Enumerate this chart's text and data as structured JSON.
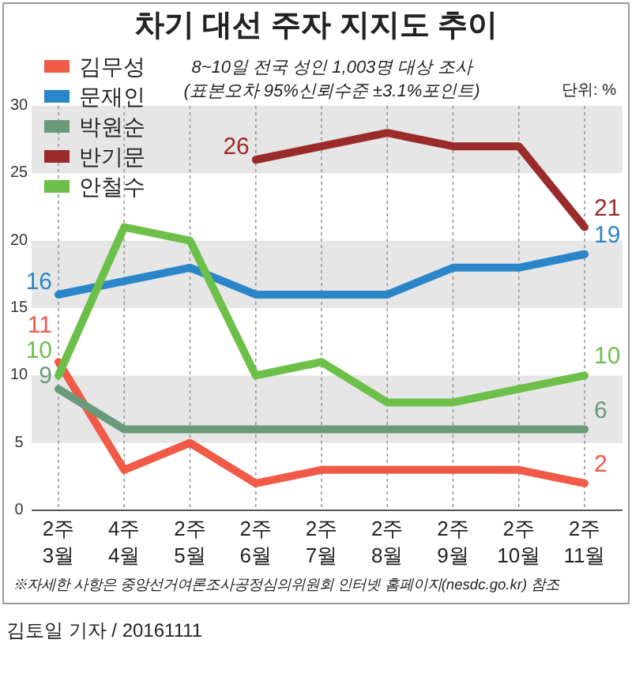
{
  "chart_data": {
    "type": "line",
    "title": "차기 대선 주자 지지도 추이",
    "subtitle": "8~10일 전국 성인 1,003명 대상 조사\n(표본오차 95%신뢰수준 ±3.1%포인트)",
    "categories": [
      "2주\n3월",
      "4주\n4월",
      "2주\n5월",
      "2주\n6월",
      "2주\n7월",
      "2주\n8월",
      "2주\n9월",
      "2주\n10월",
      "2주\n11월"
    ],
    "series": [
      {
        "name": "김무성",
        "color": "#f05a46",
        "values": [
          11,
          3,
          5,
          2,
          3,
          3,
          3,
          3,
          2
        ],
        "value_labels": [
          "11",
          null,
          null,
          null,
          null,
          null,
          null,
          null,
          "2"
        ]
      },
      {
        "name": "문재인",
        "color": "#2a86c8",
        "values": [
          16,
          17,
          18,
          16,
          16,
          16,
          18,
          18,
          19
        ],
        "value_labels": [
          "16",
          null,
          null,
          null,
          null,
          null,
          null,
          null,
          "19"
        ]
      },
      {
        "name": "박원순",
        "color": "#6a9a7a",
        "values": [
          9,
          6,
          6,
          6,
          6,
          6,
          6,
          6,
          6
        ],
        "value_labels": [
          "9",
          null,
          null,
          null,
          null,
          null,
          null,
          null,
          "6"
        ]
      },
      {
        "name": "반기문",
        "color": "#9b2a2a",
        "values": [
          null,
          null,
          null,
          26,
          27,
          28,
          27,
          27,
          21
        ],
        "value_labels": [
          null,
          null,
          null,
          "26",
          null,
          null,
          null,
          null,
          "21"
        ]
      },
      {
        "name": "안철수",
        "color": "#6cc04a",
        "values": [
          10,
          21,
          20,
          10,
          11,
          8,
          8,
          9,
          10
        ],
        "value_labels": [
          "10",
          null,
          null,
          null,
          null,
          null,
          null,
          null,
          "10"
        ]
      }
    ],
    "ylim": [
      0,
      30
    ],
    "yticks": [
      0,
      5,
      10,
      15,
      20,
      25,
      30
    ],
    "bands": [
      {
        "axis": "y",
        "from": 5,
        "to": 10,
        "color": "#e6e6e6"
      },
      {
        "axis": "y",
        "from": 15,
        "to": 20,
        "color": "#e6e6e6"
      },
      {
        "axis": "y",
        "from": 25,
        "to": 30,
        "color": "#e6e6e6"
      }
    ],
    "grid": "x",
    "legend": "top left",
    "line_style": "solid",
    "annotations": [
      "단위: %",
      "※자세한 사항은 중앙선거여론조사공정심의위원회 인터넷 홈페이지(nesdc.go.kr) 참조",
      "김토일 기자 / 20161111"
    ]
  }
}
